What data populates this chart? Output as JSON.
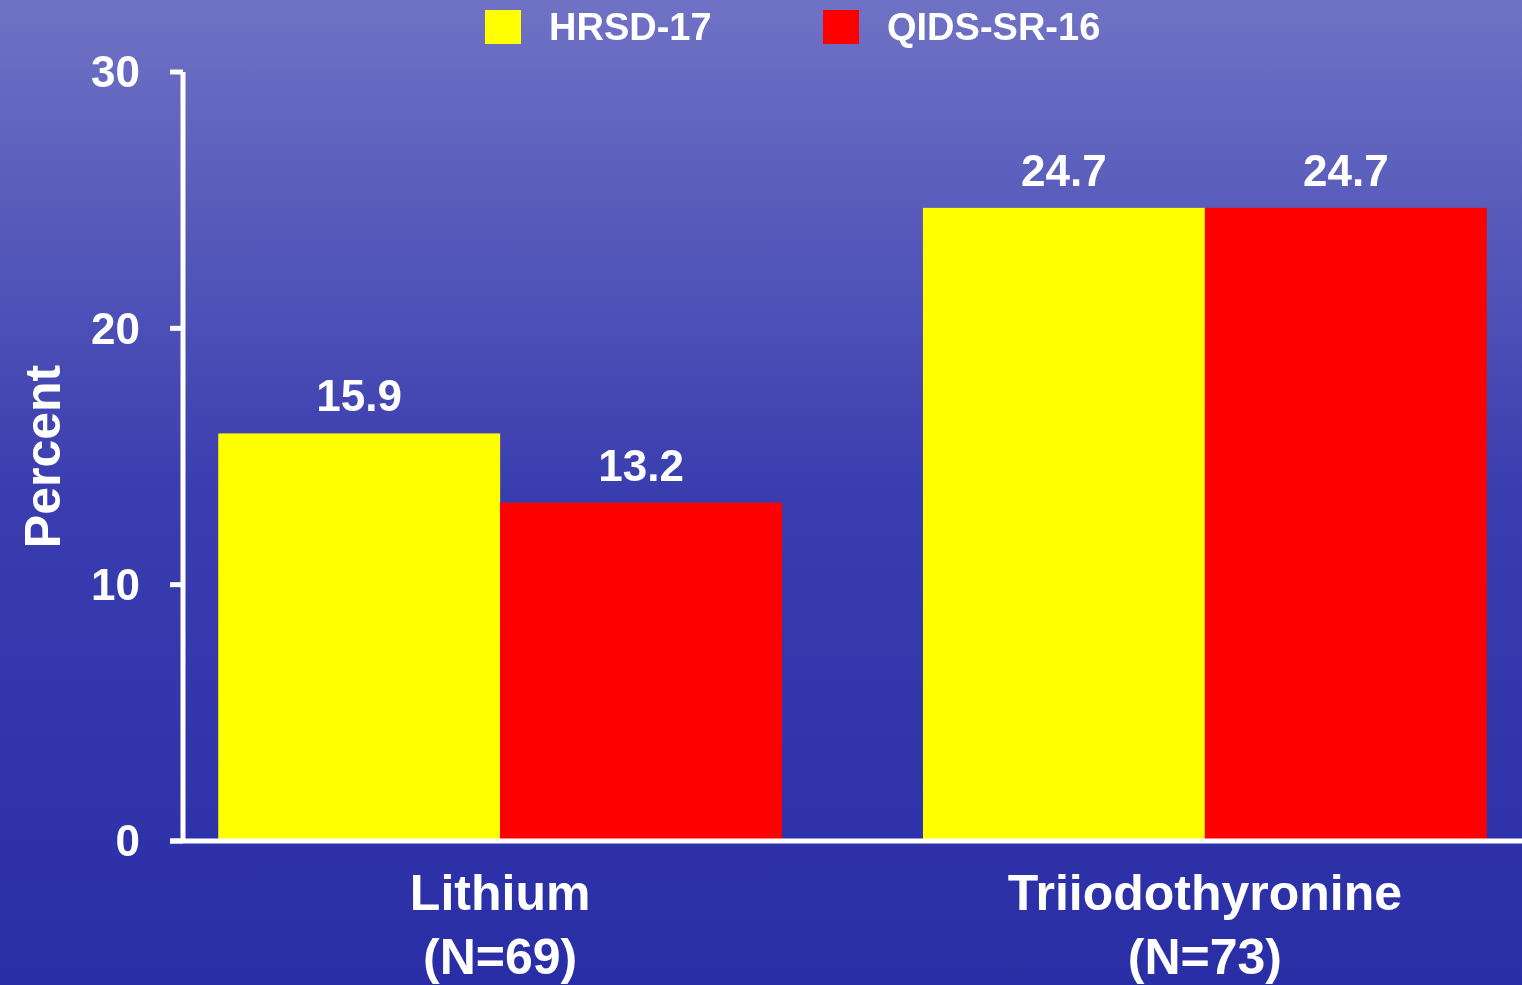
{
  "chart_data": {
    "type": "bar",
    "categories": [
      "Lithium\n(N=69)",
      "Triiodothyronine\n(N=73)"
    ],
    "ylabel": "Percent",
    "ylim": [
      0,
      30
    ],
    "yticks": [
      0,
      10,
      20,
      30
    ],
    "grid": false,
    "legend": "top",
    "data_labels": true,
    "series": [
      {
        "name": "HRSD-17",
        "color": "#ffff00",
        "values": [
          15.9,
          24.7
        ]
      },
      {
        "name": "QIDS-SR-16",
        "color": "#ff0000",
        "values": [
          13.2,
          24.7
        ]
      }
    ]
  }
}
